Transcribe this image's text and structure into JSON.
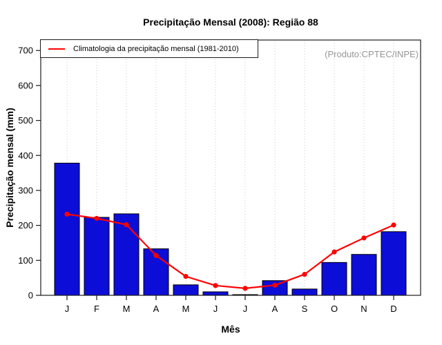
{
  "title": "Precipitação Mensal (2008): Região 88",
  "watermark": "(Produto:CPTEC/INPE)",
  "legend": {
    "label": "Climatologia da precipitação mensal (1981-2010)"
  },
  "axes": {
    "y_label": "Precipitação mensal (mm)",
    "x_label": "Mês"
  },
  "colors": {
    "bar": "#0d0dd8",
    "bar_border": "#000000",
    "line": "#ff0000",
    "grid": "#c9c9c9",
    "axis": "#1a1a1a",
    "tick_text": "#000000",
    "watermark": "#969696"
  },
  "chart_data": {
    "type": "bar",
    "title": "Precipitação Mensal (2008): Região 88",
    "xlabel": "Mês",
    "ylabel": "Precipitação mensal (mm)",
    "categories": [
      "J",
      "F",
      "M",
      "A",
      "M",
      "J",
      "J",
      "A",
      "S",
      "O",
      "N",
      "D"
    ],
    "series": [
      {
        "name": "Precipitação mensal 2008",
        "type": "bar",
        "values": [
          378,
          223,
          233,
          133,
          30,
          10,
          2,
          42,
          18,
          94,
          117,
          182
        ]
      },
      {
        "name": "Climatologia da precipitação mensal (1981-2010)",
        "type": "line",
        "values": [
          232,
          220,
          202,
          114,
          54,
          28,
          20,
          29,
          60,
          124,
          164,
          201
        ]
      }
    ],
    "ylim": [
      0,
      730
    ],
    "yticks": [
      0,
      100,
      200,
      300,
      400,
      500,
      600,
      700
    ],
    "grid": "vertical-dotted",
    "legend_position": "top-left",
    "annotation": "(Produto:CPTEC/INPE)"
  }
}
